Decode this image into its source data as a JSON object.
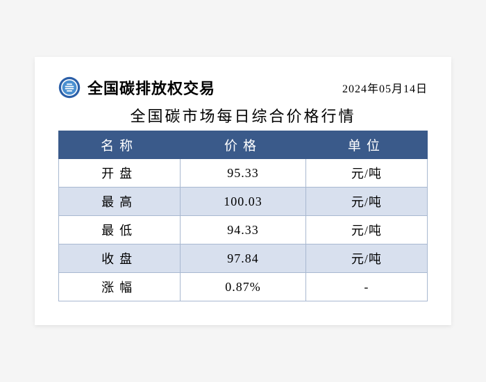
{
  "header": {
    "org_name": "全国碳排放权交易",
    "date": "2024年05月14日"
  },
  "title": "全国碳市场每日综合价格行情",
  "table": {
    "header_bg": "#3a5a8a",
    "header_text_color": "#ffffff",
    "row_alt_bg": "#d8e0ee",
    "row_bg": "#ffffff",
    "border_color": "#a8b8d0",
    "columns": [
      "名称",
      "价格",
      "单位"
    ],
    "rows": [
      {
        "label": "开盘",
        "price": "95.33",
        "unit": "元/吨"
      },
      {
        "label": "最高",
        "price": "100.03",
        "unit": "元/吨"
      },
      {
        "label": "最低",
        "price": "94.33",
        "unit": "元/吨"
      },
      {
        "label": "收盘",
        "price": "97.84",
        "unit": "元/吨"
      },
      {
        "label": "涨幅",
        "price": "0.87%",
        "unit": "-"
      }
    ]
  },
  "logo": {
    "outer_ring": "#2b5fa8",
    "inner_ring": "#4a8fd0",
    "bars": "#ffffff"
  }
}
